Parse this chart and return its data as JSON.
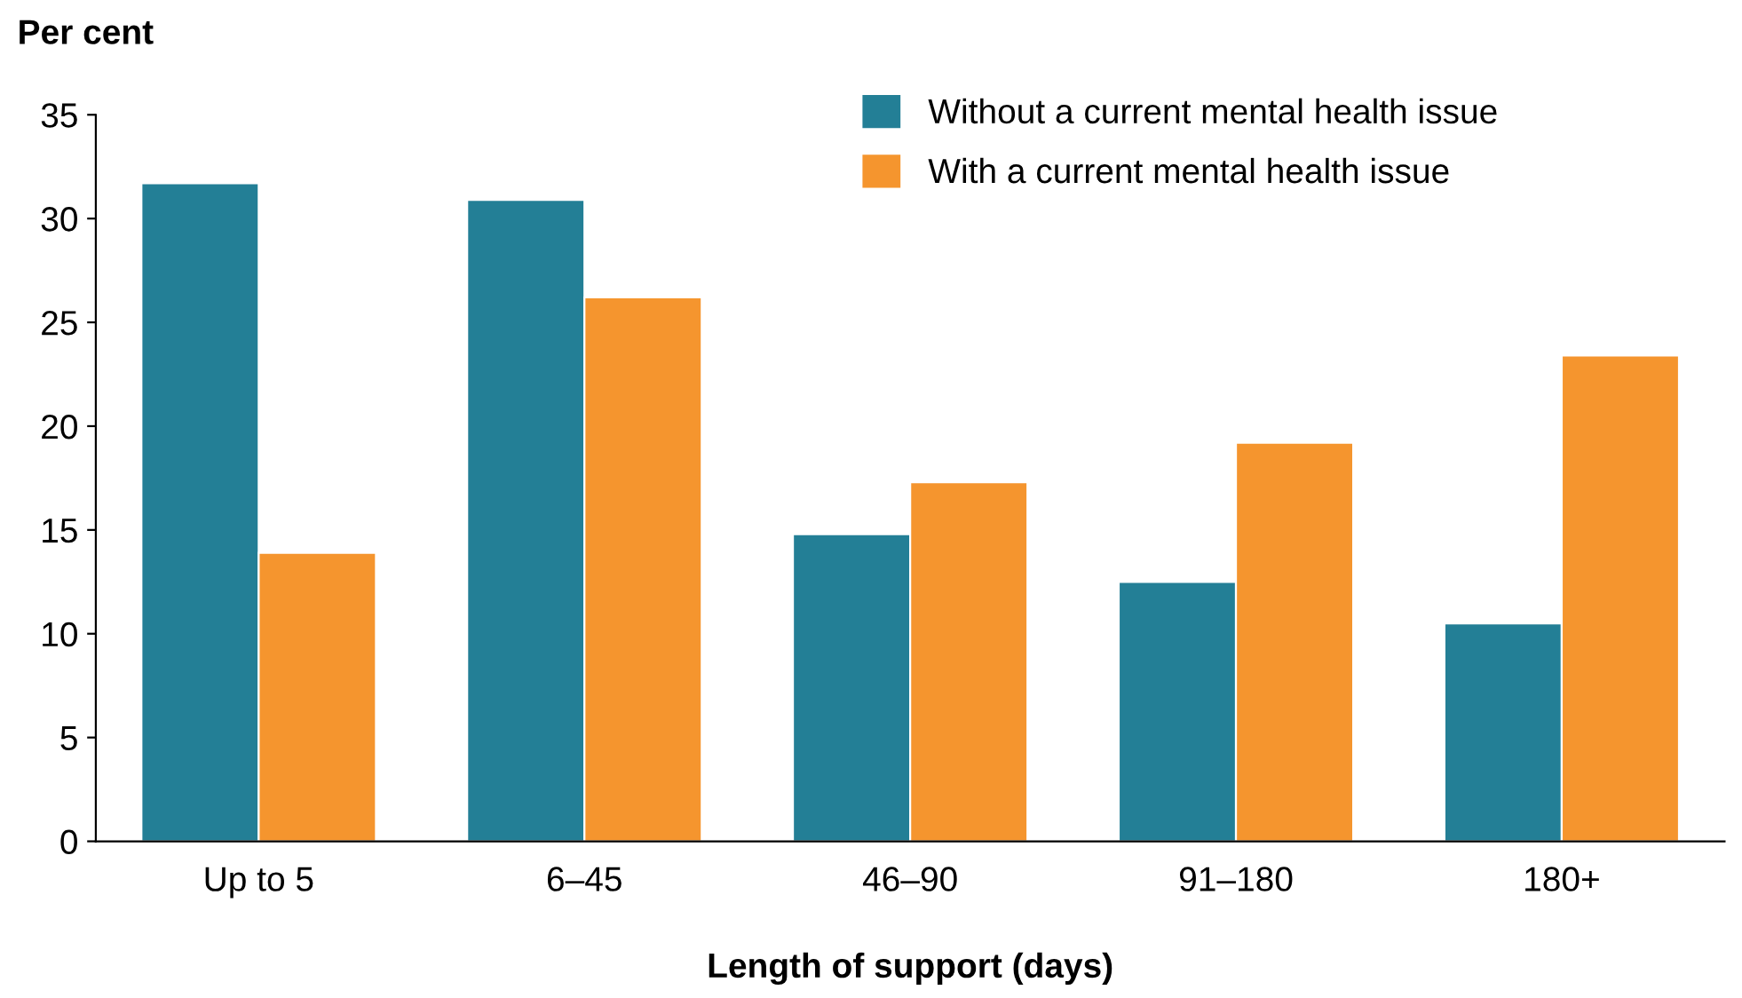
{
  "chart_data": {
    "type": "bar",
    "ylabel": "Per cent",
    "xlabel": "Length of support (days)",
    "categories": [
      "Up to 5",
      "6–45",
      "46–90",
      "91–180",
      "180+"
    ],
    "series": [
      {
        "name": "Without a current mental health issue",
        "color": "#237f96",
        "values": [
          31.7,
          30.9,
          14.8,
          12.5,
          10.5
        ]
      },
      {
        "name": "With a current mental health issue",
        "color": "#f5952e",
        "values": [
          13.9,
          26.2,
          17.3,
          19.2,
          23.4
        ]
      }
    ],
    "ylim": [
      0,
      35
    ],
    "yticks": [
      0,
      5,
      10,
      15,
      20,
      25,
      30,
      35
    ],
    "grid": false,
    "legend": "top right"
  }
}
